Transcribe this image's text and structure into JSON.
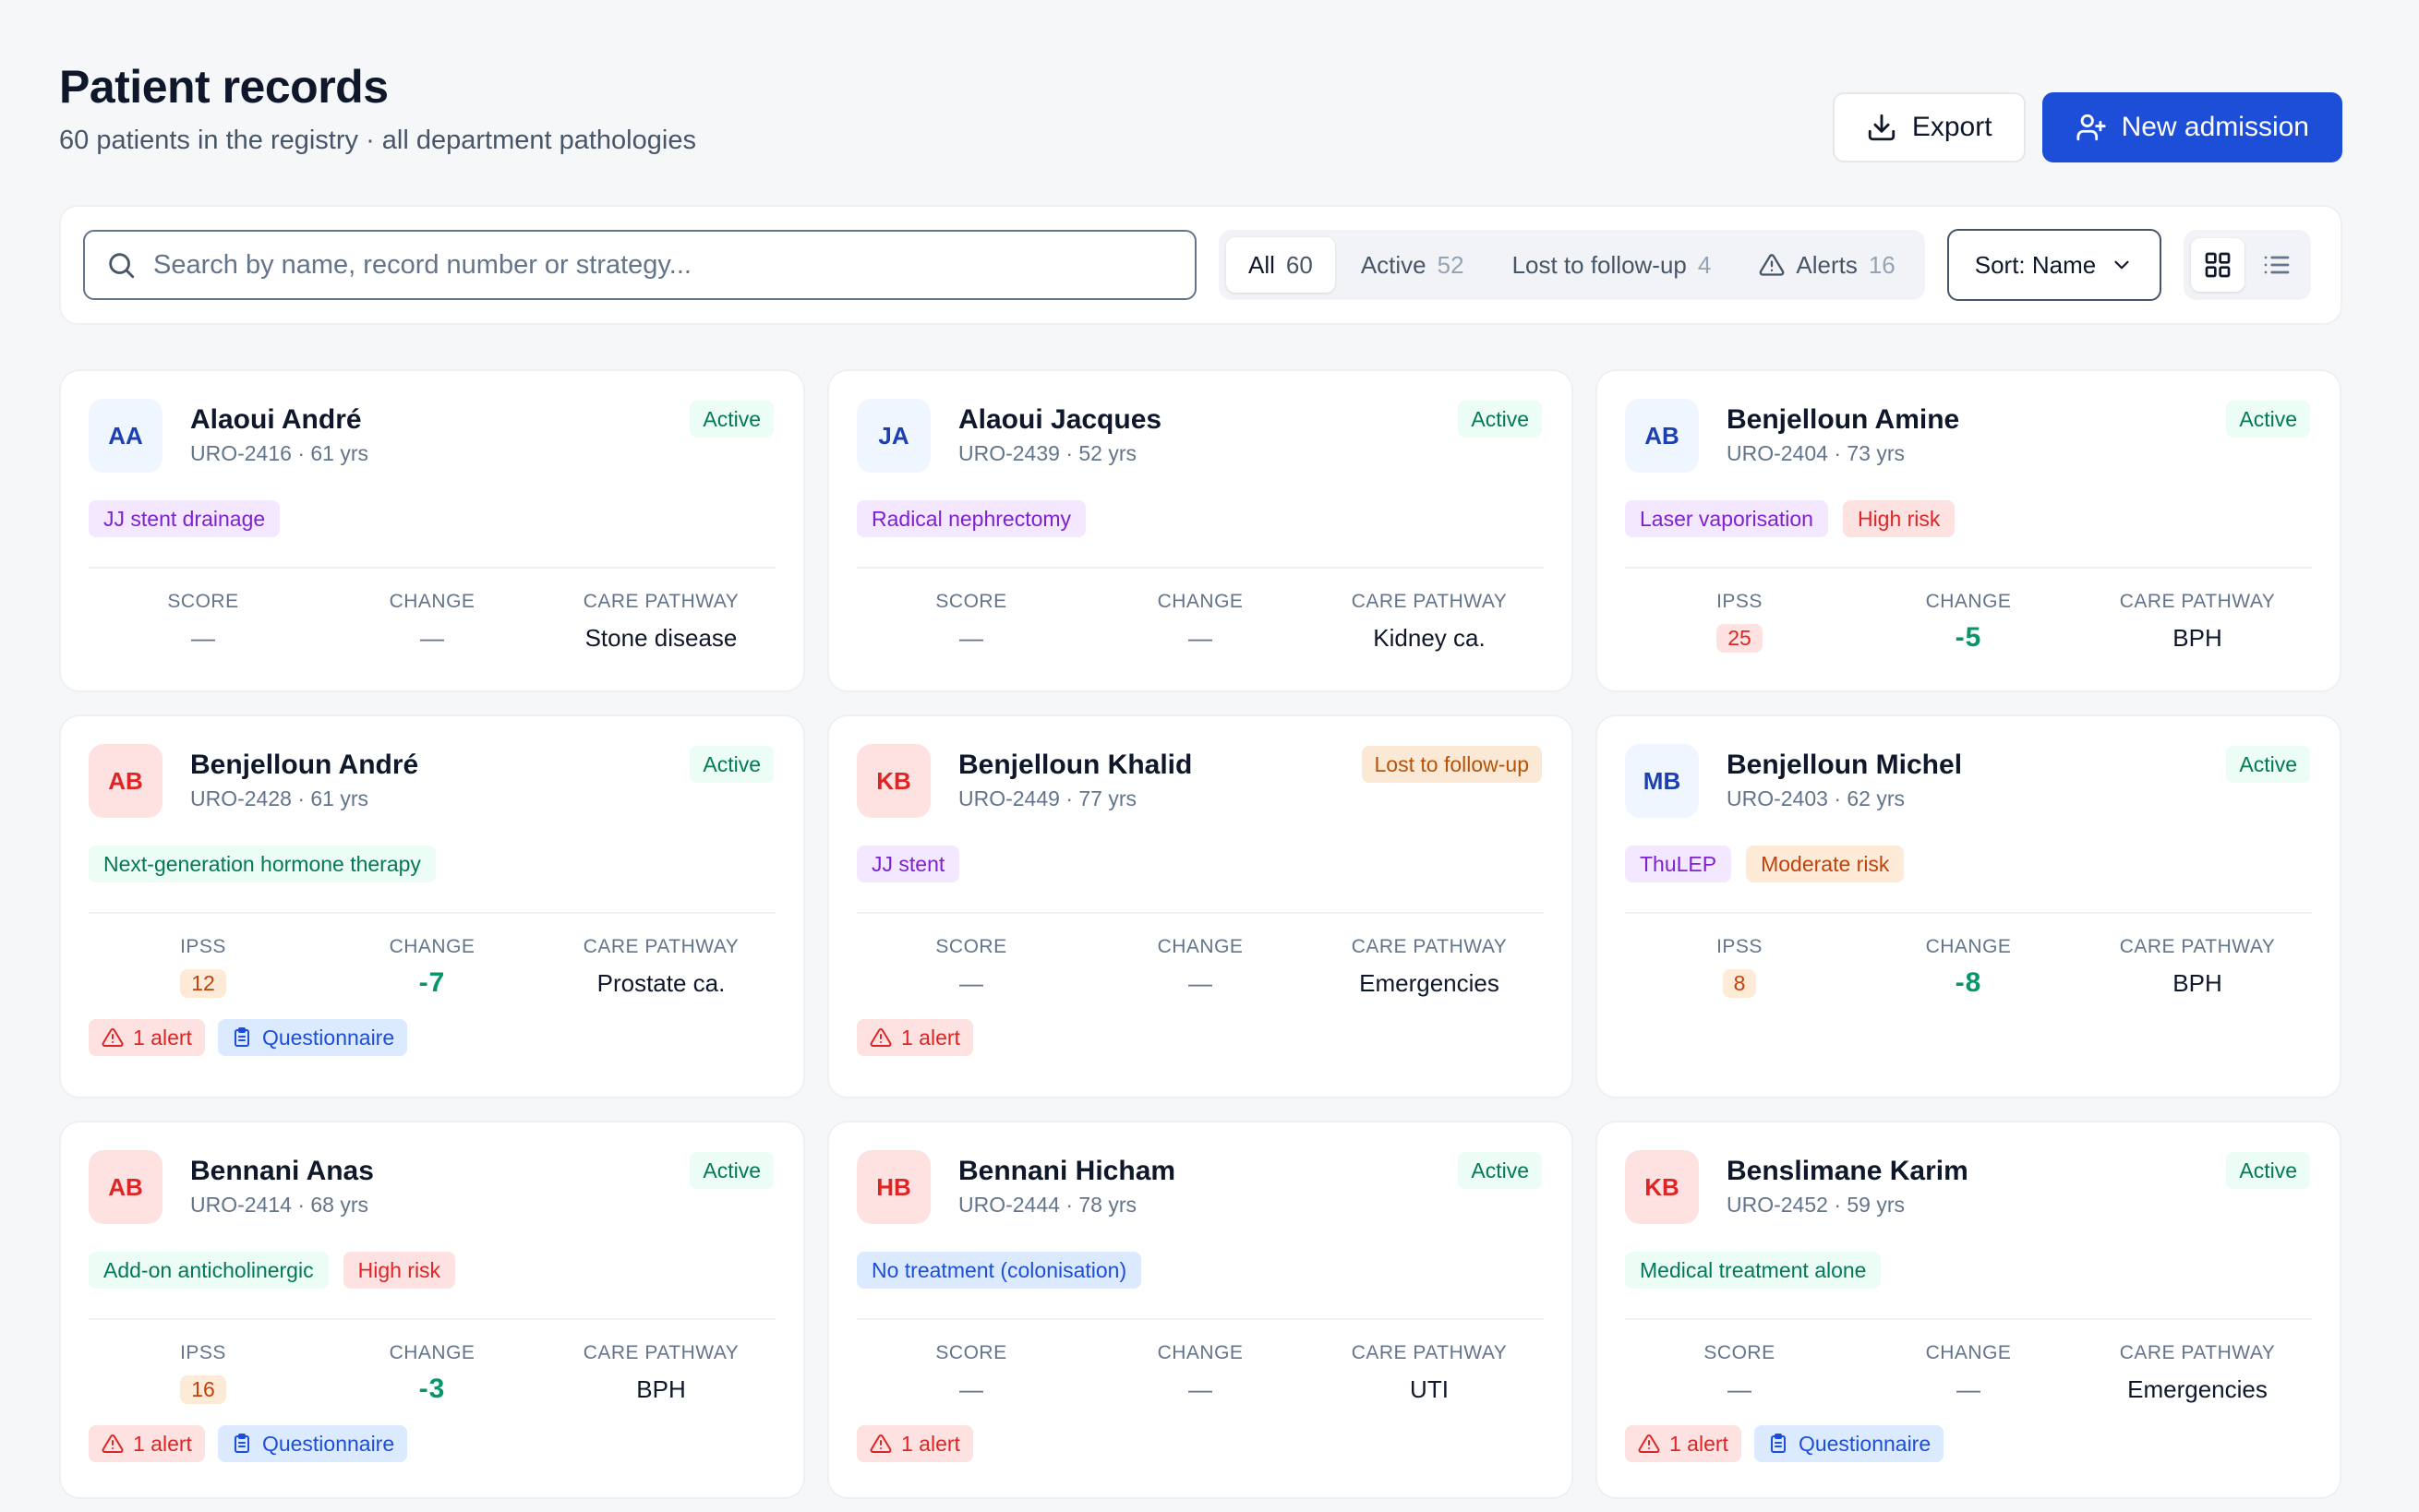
{
  "header": {
    "title": "Patient records",
    "subtitle": "60 patients in the registry · all department pathologies",
    "export_label": "Export",
    "new_admission_label": "New admission"
  },
  "toolbar": {
    "search_placeholder": "Search by name, record number or strategy...",
    "filters": [
      {
        "label": "All",
        "count": "60",
        "active": true
      },
      {
        "label": "Active",
        "count": "52"
      },
      {
        "label": "Lost to follow-up",
        "count": "4"
      },
      {
        "label": "Alerts",
        "count": "16"
      }
    ],
    "sort_label": "Sort: Name"
  },
  "stat_labels": {
    "score": "SCORE",
    "ipss": "IPSS",
    "change": "CHANGE",
    "pathway": "CARE PATHWAY"
  },
  "patients": [
    {
      "initials": "AA",
      "name": "Alaoui André",
      "meta": "URO-2416 · 61 yrs",
      "status": "Active",
      "tags": [
        "JJ stent drainage"
      ],
      "score_label": "SCORE",
      "score": "—",
      "change": "—",
      "pathway": "Stone disease"
    },
    {
      "initials": "JA",
      "name": "Alaoui Jacques",
      "meta": "URO-2439 · 52 yrs",
      "status": "Active",
      "tags": [
        "Radical nephrectomy"
      ],
      "score_label": "SCORE",
      "score": "—",
      "change": "—",
      "pathway": "Kidney ca."
    },
    {
      "initials": "AB",
      "name": "Benjelloun Amine",
      "meta": "URO-2404 · 73 yrs",
      "status": "Active",
      "tags": [
        "Laser vaporisation",
        "High risk"
      ],
      "score_label": "IPSS",
      "score": "25",
      "change": "-5",
      "pathway": "BPH"
    },
    {
      "initials": "AB",
      "name": "Benjelloun André",
      "meta": "URO-2428 · 61 yrs",
      "status": "Active",
      "tags": [
        "Next-generation hormone therapy"
      ],
      "score_label": "IPSS",
      "score": "12",
      "change": "-7",
      "pathway": "Prostate ca.",
      "alert": "1 alert",
      "questionnaire": "Questionnaire"
    },
    {
      "initials": "KB",
      "name": "Benjelloun Khalid",
      "meta": "URO-2449 · 77 yrs",
      "status": "Lost to follow-up",
      "tags": [
        "JJ stent"
      ],
      "score_label": "SCORE",
      "score": "—",
      "change": "—",
      "pathway": "Emergencies",
      "alert": "1 alert"
    },
    {
      "initials": "MB",
      "name": "Benjelloun Michel",
      "meta": "URO-2403 · 62 yrs",
      "status": "Active",
      "tags": [
        "ThuLEP",
        "Moderate risk"
      ],
      "score_label": "IPSS",
      "score": "8",
      "change": "-8",
      "pathway": "BPH"
    },
    {
      "initials": "AB",
      "name": "Bennani Anas",
      "meta": "URO-2414 · 68 yrs",
      "status": "Active",
      "tags": [
        "Add-on anticholinergic",
        "High risk"
      ],
      "score_label": "IPSS",
      "score": "16",
      "change": "-3",
      "pathway": "BPH",
      "alert": "1 alert",
      "questionnaire": "Questionnaire"
    },
    {
      "initials": "HB",
      "name": "Bennani Hicham",
      "meta": "URO-2444 · 78 yrs",
      "status": "Active",
      "tags": [
        "No treatment (colonisation)"
      ],
      "score_label": "SCORE",
      "score": "—",
      "change": "—",
      "pathway": "UTI",
      "alert": "1 alert"
    },
    {
      "initials": "KB",
      "name": "Benslimane Karim",
      "meta": "URO-2452 · 59 yrs",
      "status": "Active",
      "tags": [
        "Medical treatment alone"
      ],
      "score_label": "SCORE",
      "score": "—",
      "change": "—",
      "pathway": "Emergencies",
      "alert": "1 alert",
      "questionnaire": "Questionnaire"
    }
  ],
  "colors": {
    "primary": "#1d4ed8",
    "active_status": "#047857",
    "lost_status": "#b45309",
    "alert": "#dc2626",
    "change": "#059669"
  }
}
